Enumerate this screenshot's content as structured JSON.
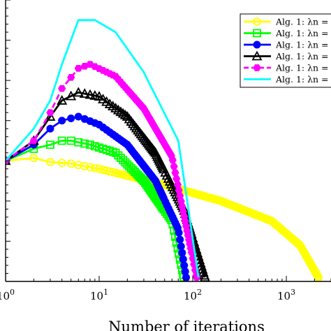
{
  "chart_data": {
    "type": "line",
    "xscale": "log",
    "xlim": [
      1,
      3000
    ],
    "ylim": [
      1e-30,
      1e+40
    ],
    "yscale": "log",
    "xlabel": "Number of iterations",
    "ylabel": "",
    "x_tick_labels": [
      {
        "x": 1,
        "base": "10",
        "exp": "0"
      },
      {
        "x": 10,
        "base": "10",
        "exp": "1"
      },
      {
        "x": 100,
        "base": "10",
        "exp": "2"
      },
      {
        "x": 1000,
        "base": "10",
        "exp": "3"
      }
    ],
    "legend_placement": "top-right",
    "series": [
      {
        "name": "Alg. 1: λn =",
        "color": "#ffff00",
        "marker": "circle-open",
        "points": [
          [
            1,
            1
          ],
          [
            2,
            5
          ],
          [
            3,
            0.5
          ],
          [
            5,
            0.2
          ],
          [
            10,
            0.01
          ],
          [
            50,
            1e-06
          ],
          [
            200,
            1e-10
          ],
          [
            700,
            1e-15
          ],
          [
            1400,
            1e-21
          ],
          [
            2200,
            1e-29
          ]
        ]
      },
      {
        "name": "Alg. 1: λn =",
        "color": "#00ff00",
        "marker": "square-open",
        "points": [
          [
            1,
            1
          ],
          [
            2,
            1000.0
          ],
          [
            3,
            10000.0
          ],
          [
            4,
            100000.0
          ],
          [
            5,
            100000.0
          ],
          [
            8,
            10000.0
          ],
          [
            15,
            100.0
          ],
          [
            30,
            1e-05
          ],
          [
            60,
            1e-15
          ],
          [
            80,
            1e-29
          ]
        ]
      },
      {
        "name": "Alg. 1: λn =",
        "color": "#0000ff",
        "marker": "circle-filled",
        "points": [
          [
            1,
            1
          ],
          [
            2,
            10000.0
          ],
          [
            3,
            100000000.0
          ],
          [
            4,
            10000000000.0
          ],
          [
            6,
            100000000000.0
          ],
          [
            10,
            1000000000.0
          ],
          [
            20,
            10000.0
          ],
          [
            40,
            1e-05
          ],
          [
            70,
            1e-17
          ],
          [
            85,
            1e-29
          ]
        ]
      },
      {
        "name": "Alg. 1: λn =",
        "color": "#000000",
        "marker": "triangle-open",
        "points": [
          [
            1,
            1
          ],
          [
            2,
            100000.0
          ],
          [
            3,
            100000000000.0
          ],
          [
            4,
            1000000000000000.0
          ],
          [
            6,
            1e+17
          ],
          [
            10,
            1e+16
          ],
          [
            20,
            100000000000.0
          ],
          [
            40,
            100.0
          ],
          [
            80,
            1e-12
          ],
          [
            135,
            1e-29
          ]
        ]
      },
      {
        "name": "Alg. 1: λn =",
        "color": "#ff00ff",
        "marker": "hexagon-filled",
        "dashed": true,
        "points": [
          [
            1,
            1
          ],
          [
            2,
            100000.0
          ],
          [
            3,
            1000000000000.0
          ],
          [
            4,
            1e+18
          ],
          [
            6,
            1e+23
          ],
          [
            8,
            1e+24
          ],
          [
            15,
            1e+21
          ],
          [
            30,
            10000000000000.0
          ],
          [
            60,
            10.0
          ],
          [
            110,
            1e-29
          ]
        ]
      },
      {
        "name": "Alg. 1: λn =",
        "color": "#00ffff",
        "marker": "none",
        "points": [
          [
            1,
            1
          ],
          [
            2,
            100000000.0
          ],
          [
            3,
            1000000000000000.0
          ],
          [
            4,
            1e+24
          ],
          [
            6,
            1e+35
          ],
          [
            9,
            1e+35
          ],
          [
            15,
            1e+32
          ],
          [
            30,
            1e+22
          ],
          [
            70,
            100000.0
          ],
          [
            115,
            1e-29
          ]
        ]
      }
    ]
  }
}
